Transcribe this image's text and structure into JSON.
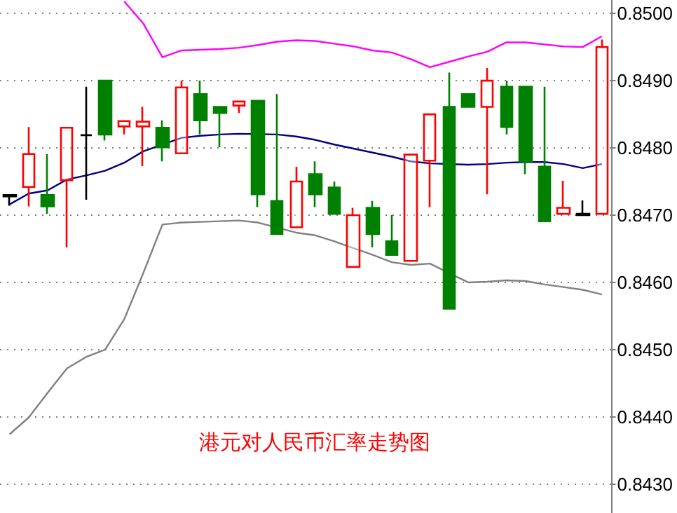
{
  "chart_data": {
    "type": "candlestick",
    "title": "港元对人民币汇率走势图",
    "categories": [
      null,
      null,
      null,
      null,
      null,
      null,
      null,
      null,
      null,
      null,
      null,
      null,
      null,
      null,
      null,
      null,
      null,
      null,
      null,
      null,
      null,
      null,
      null,
      null,
      null,
      null,
      null,
      null,
      null,
      null,
      null,
      null
    ],
    "ohlc": [
      [
        0.8473,
        0.8473,
        0.84714,
        0.84728
      ],
      [
        0.84742,
        0.84831,
        0.84713,
        0.84791
      ],
      [
        0.8473,
        0.84791,
        0.84702,
        0.84713
      ],
      [
        0.84752,
        0.8483,
        0.84652,
        0.8483
      ],
      [
        0.84819,
        0.84891,
        0.84723,
        0.84819
      ],
      [
        0.849,
        0.849,
        0.84811,
        0.8482
      ],
      [
        0.84832,
        0.8484,
        0.8482,
        0.8484
      ],
      [
        0.84832,
        0.84861,
        0.84773,
        0.84839
      ],
      [
        0.8483,
        0.84841,
        0.8478,
        0.84801
      ],
      [
        0.84792,
        0.849,
        0.84792,
        0.8489
      ],
      [
        0.8488,
        0.849,
        0.8482,
        0.84841
      ],
      [
        0.84861,
        0.84861,
        0.84801,
        0.84852
      ],
      [
        0.84863,
        0.84869,
        0.84852,
        0.84869
      ],
      [
        0.8487,
        0.8487,
        0.84712,
        0.84731
      ],
      [
        0.84721,
        0.8488,
        0.84672,
        0.84672
      ],
      [
        0.84682,
        0.84772,
        0.84682,
        0.8475
      ],
      [
        0.84761,
        0.8478,
        0.84712,
        0.84731
      ],
      [
        0.84741,
        0.8475,
        0.84702,
        0.84702
      ],
      [
        0.84623,
        0.84711,
        0.84623,
        0.847
      ],
      [
        0.84711,
        0.84721,
        0.84652,
        0.84672
      ],
      [
        0.84661,
        0.847,
        0.84641,
        0.84641
      ],
      [
        0.84632,
        0.8479,
        0.84632,
        0.8479
      ],
      [
        0.84781,
        0.8485,
        0.84712,
        0.8485
      ],
      [
        0.84861,
        0.84912,
        0.84561,
        0.84561
      ],
      [
        0.8488,
        0.8488,
        0.84861,
        0.84861
      ],
      [
        0.84861,
        0.84919,
        0.84731,
        0.849
      ],
      [
        0.84891,
        0.849,
        0.8482,
        0.84831
      ],
      [
        0.84891,
        0.84891,
        0.84761,
        0.8478
      ],
      [
        0.84772,
        0.84891,
        0.84691,
        0.84691
      ],
      [
        0.84702,
        0.84751,
        0.84702,
        0.84711
      ],
      [
        0.847,
        0.84722,
        0.847,
        0.84702
      ],
      [
        0.84702,
        0.84961,
        0.84702,
        0.8495
      ]
    ],
    "colors": [
      "#000000",
      "#ff0000",
      "#008000",
      "#ff0000",
      "#000000",
      "#008000",
      "#ff0000",
      "#ff0000",
      "#008000",
      "#ff0000",
      "#008000",
      "#008000",
      "#ff0000",
      "#008000",
      "#008000",
      "#ff0000",
      "#008000",
      "#008000",
      "#ff0000",
      "#008000",
      "#008000",
      "#ff0000",
      "#ff0000",
      "#008000",
      "#008000",
      "#ff0000",
      "#008000",
      "#008000",
      "#008000",
      "#ff0000",
      "#000000",
      "#ff0000"
    ],
    "series": [
      {
        "type": "line",
        "color": "#000080",
        "values": [
          0.84716,
          0.84732,
          0.84737,
          0.84753,
          0.84759,
          0.84766,
          0.84778,
          0.84795,
          null,
          0.84815,
          0.84818,
          0.8482,
          0.84821,
          null,
          0.8482,
          0.84817,
          0.84812,
          0.84805,
          0.84799,
          0.84793,
          0.84787,
          0.8478,
          0.84777,
          null,
          0.84775,
          0.84776,
          0.84778,
          0.84779,
          0.84779,
          0.84776,
          0.8477,
          0.84776
        ]
      },
      {
        "type": "line",
        "color": "#ff00ff",
        "values": [
          null,
          null,
          null,
          null,
          null,
          null,
          0.85018,
          0.84985,
          0.84935,
          0.84945,
          0.84946,
          0.84947,
          0.84949,
          0.84953,
          0.84958,
          0.8496,
          0.84959,
          0.84955,
          0.84951,
          0.84945,
          0.84942,
          0.84932,
          0.8492,
          0.84928,
          0.84936,
          0.84943,
          0.84957,
          0.84957,
          0.84954,
          0.84951,
          0.8495,
          0.84966
        ]
      },
      {
        "type": "line",
        "color": "#808080",
        "values": [
          0.84374,
          0.84399,
          0.84436,
          0.84472,
          0.84489,
          0.845,
          0.84545,
          0.84614,
          0.84686,
          0.84689,
          0.8469,
          0.84691,
          0.84692,
          0.84689,
          null,
          0.84674,
          0.8467,
          0.84661,
          0.84651,
          0.84641,
          0.8463,
          0.84626,
          0.84628,
          null,
          0.846,
          0.84601,
          0.84603,
          0.84602,
          0.84597,
          0.84593,
          0.84589,
          0.84582
        ]
      }
    ],
    "ylim": [
      0.84257,
      0.8502
    ],
    "yticks": [
      {
        "value": 0.843,
        "label": "0.8430"
      },
      {
        "value": 0.844,
        "label": "0.8440"
      },
      {
        "value": 0.845,
        "label": "0.8450"
      },
      {
        "value": 0.846,
        "label": "0.8460"
      },
      {
        "value": 0.847,
        "label": "0.8470"
      },
      {
        "value": 0.848,
        "label": "0.8480"
      },
      {
        "value": 0.849,
        "label": "0.8490"
      },
      {
        "value": 0.85,
        "label": "0.8500"
      }
    ],
    "grid": "y",
    "tick_labels": "y",
    "marker": "none"
  }
}
